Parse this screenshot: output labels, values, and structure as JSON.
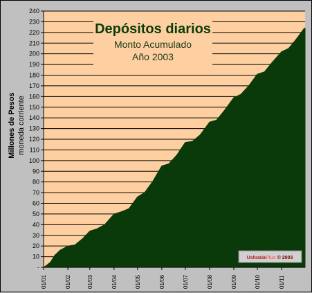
{
  "chart_data": {
    "type": "area",
    "title": "Depósitos diarios",
    "subtitle_line1": "Monto Acumulado",
    "subtitle_line2": "Año 2003",
    "ylabel": "Millones de Pesos",
    "ylabel_sub": "moneda corriente",
    "ylim": [
      0,
      240
    ],
    "yticks": [
      "-",
      "10",
      "20",
      "30",
      "40",
      "50",
      "60",
      "70",
      "80",
      "90",
      "100",
      "110",
      "120",
      "130",
      "140",
      "150",
      "160",
      "170",
      "180",
      "190",
      "200",
      "210",
      "220",
      "230",
      "240"
    ],
    "grid": true,
    "x_categories": [
      "01/01",
      "01/02",
      "01/03",
      "01/04",
      "01/05",
      "01/06",
      "01/07",
      "01/08",
      "01/09",
      "01/10",
      "01/11"
    ],
    "series": [
      {
        "values": [
          {
            "x": "01/01",
            "y": 0
          },
          {
            "x": "05/01",
            "y": 2
          },
          {
            "x": "10/01",
            "y": 5
          },
          {
            "x": "15/01",
            "y": 11
          },
          {
            "x": "22/01",
            "y": 16
          },
          {
            "x": "01/02",
            "y": 20
          },
          {
            "x": "10/02",
            "y": 21
          },
          {
            "x": "20/02",
            "y": 27
          },
          {
            "x": "01/03",
            "y": 34
          },
          {
            "x": "10/03",
            "y": 36
          },
          {
            "x": "20/03",
            "y": 40
          },
          {
            "x": "01/04",
            "y": 50
          },
          {
            "x": "10/04",
            "y": 52
          },
          {
            "x": "20/04",
            "y": 55
          },
          {
            "x": "01/05",
            "y": 66
          },
          {
            "x": "10/05",
            "y": 70
          },
          {
            "x": "20/05",
            "y": 80
          },
          {
            "x": "01/06",
            "y": 95
          },
          {
            "x": "10/06",
            "y": 97
          },
          {
            "x": "20/06",
            "y": 105
          },
          {
            "x": "01/07",
            "y": 117
          },
          {
            "x": "10/07",
            "y": 118
          },
          {
            "x": "20/07",
            "y": 124
          },
          {
            "x": "01/08",
            "y": 136
          },
          {
            "x": "10/08",
            "y": 138
          },
          {
            "x": "20/08",
            "y": 147
          },
          {
            "x": "01/09",
            "y": 159
          },
          {
            "x": "10/09",
            "y": 162
          },
          {
            "x": "20/09",
            "y": 170
          },
          {
            "x": "01/10",
            "y": 181
          },
          {
            "x": "10/10",
            "y": 183
          },
          {
            "x": "20/10",
            "y": 192
          },
          {
            "x": "01/11",
            "y": 202
          },
          {
            "x": "10/11",
            "y": 205
          },
          {
            "x": "20/11",
            "y": 214
          },
          {
            "x": "30/11",
            "y": 224
          }
        ]
      }
    ],
    "watermark": {
      "part1": "Ushuaia",
      "part2": "Plus",
      "part3": " © 2003"
    }
  },
  "colors": {
    "plot_bg": "#fecfa0",
    "area": "#0a3a0a",
    "gridline": "#000000",
    "title": "#0b3d0b",
    "frame_bg": "#c0c0c0",
    "watermark_1": "#b22222",
    "watermark_2": "#ff6666",
    "watermark_3": "#800000"
  }
}
